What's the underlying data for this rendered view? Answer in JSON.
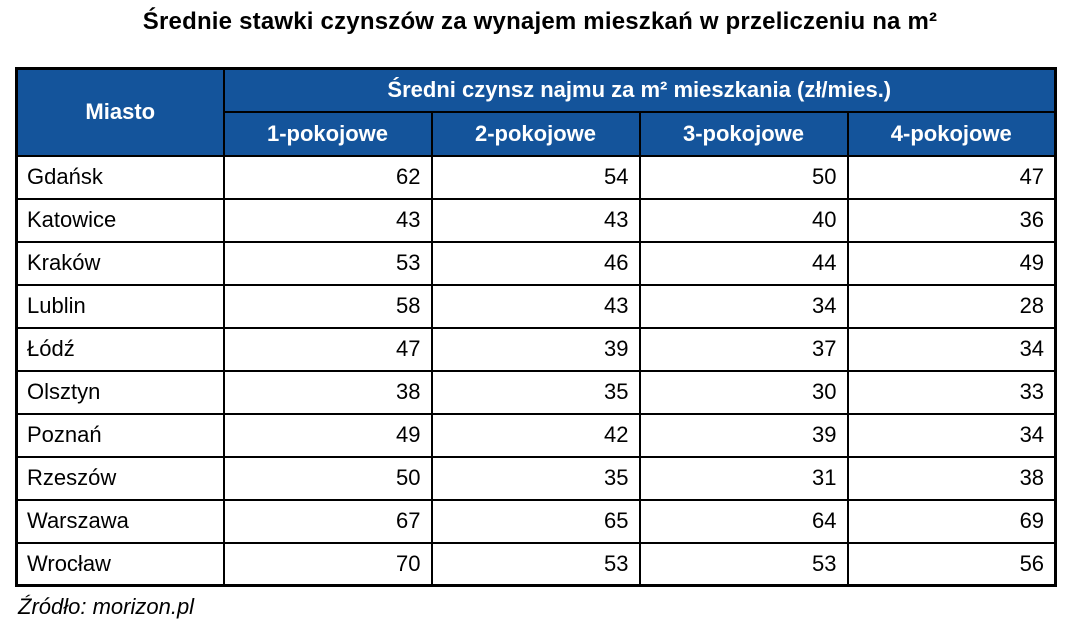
{
  "title": "Średnie stawki czynszów za wynajem mieszkań w przeliczeniu na m²",
  "source": "Źródło: morizon.pl",
  "colors": {
    "header_bg": "#14549B",
    "header_text": "#FFFFFF",
    "border": "#000000",
    "text": "#000000",
    "background": "#FFFFFF"
  },
  "chart_data": {
    "type": "table",
    "title": "Średnie stawki czynszów za wynajem mieszkań w przeliczeniu na m²",
    "row_header": "Miasto",
    "group_header": "Średni czynsz najmu za m² mieszkania (zł/mies.)",
    "columns": [
      "1-pokojowe",
      "2-pokojowe",
      "3-pokojowe",
      "4-pokojowe"
    ],
    "rows": [
      {
        "city": "Gdańsk",
        "values": [
          62,
          54,
          50,
          47
        ]
      },
      {
        "city": "Katowice",
        "values": [
          43,
          43,
          40,
          36
        ]
      },
      {
        "city": "Kraków",
        "values": [
          53,
          46,
          44,
          49
        ]
      },
      {
        "city": "Lublin",
        "values": [
          58,
          43,
          34,
          28
        ]
      },
      {
        "city": "Łódź",
        "values": [
          47,
          39,
          37,
          34
        ]
      },
      {
        "city": "Olsztyn",
        "values": [
          38,
          35,
          30,
          33
        ]
      },
      {
        "city": "Poznań",
        "values": [
          49,
          42,
          39,
          34
        ]
      },
      {
        "city": "Rzeszów",
        "values": [
          50,
          35,
          31,
          38
        ]
      },
      {
        "city": "Warszawa",
        "values": [
          67,
          65,
          64,
          69
        ]
      },
      {
        "city": "Wrocław",
        "values": [
          70,
          53,
          53,
          56
        ]
      }
    ],
    "source": "Źródło: morizon.pl",
    "layout": {
      "value_alignment": "right",
      "city_alignment": "left",
      "header_style": "blue-bold-white"
    }
  }
}
